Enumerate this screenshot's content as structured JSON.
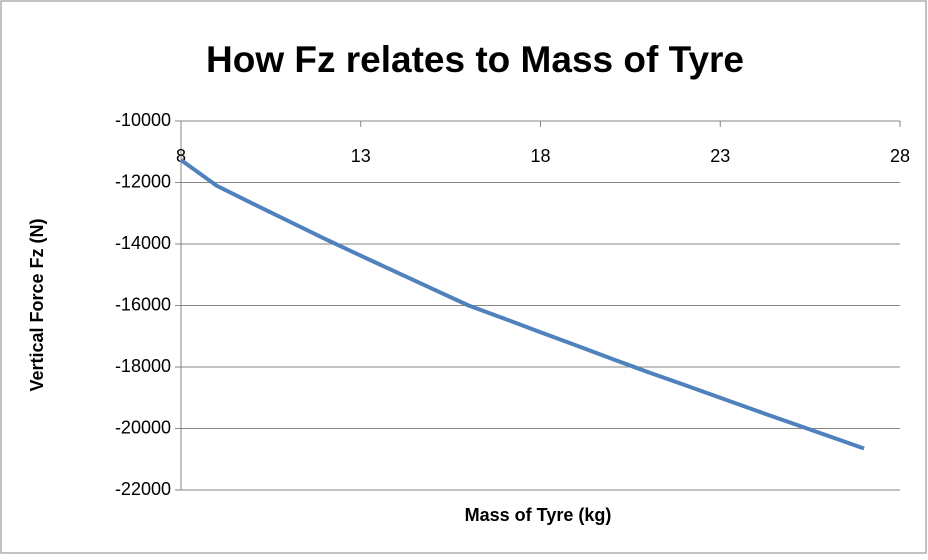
{
  "chart_data": {
    "type": "line",
    "title": "How Fz relates to Mass of Tyre",
    "x_label": "Mass of Tyre (kg)",
    "y_label": "Vertical Force Fz (N)",
    "x": [
      8,
      9,
      10,
      11,
      12,
      13,
      14,
      15,
      16,
      17,
      18,
      19,
      20,
      21,
      22,
      23,
      24,
      25,
      26,
      27
    ],
    "series": [
      {
        "name": "Fz",
        "color": "#4f81bd",
        "values": [
          -11270,
          -12110,
          -12690,
          -13260,
          -13830,
          -14380,
          -14920,
          -15460,
          -16000,
          -16430,
          -16870,
          -17300,
          -17740,
          -18170,
          -18580,
          -19000,
          -19420,
          -19830,
          -20240,
          -20650
        ]
      }
    ],
    "xlim": [
      8,
      28
    ],
    "xticks": [
      8,
      13,
      18,
      23,
      28
    ],
    "ylim": [
      -22000,
      -10000
    ],
    "yticks": [
      -10000,
      -12000,
      -14000,
      -16000,
      -18000,
      -20000,
      -22000
    ],
    "grid": true
  }
}
